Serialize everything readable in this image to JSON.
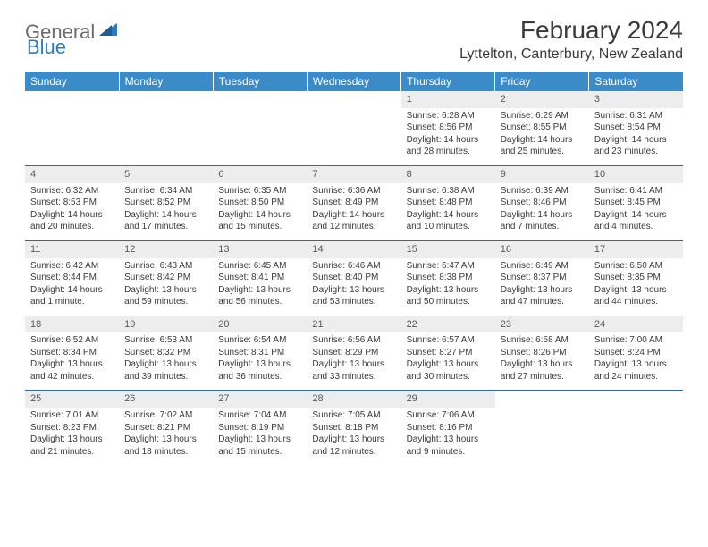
{
  "logo": {
    "text_gray": "General",
    "text_blue": "Blue"
  },
  "title": "February 2024",
  "location": "Lyttelton, Canterbury, New Zealand",
  "colors": {
    "header_bg": "#3b8bc8",
    "header_text": "#ffffff",
    "daynum_bg": "#ededed",
    "row_divider": "#2e6ca5",
    "body_text": "#3a3a3a",
    "logo_gray": "#6b6b6b",
    "logo_blue": "#2e7cbf"
  },
  "weekdays": [
    "Sunday",
    "Monday",
    "Tuesday",
    "Wednesday",
    "Thursday",
    "Friday",
    "Saturday"
  ],
  "weeks": [
    [
      {
        "num": "",
        "sunrise": "",
        "sunset": "",
        "daylight": ""
      },
      {
        "num": "",
        "sunrise": "",
        "sunset": "",
        "daylight": ""
      },
      {
        "num": "",
        "sunrise": "",
        "sunset": "",
        "daylight": ""
      },
      {
        "num": "",
        "sunrise": "",
        "sunset": "",
        "daylight": ""
      },
      {
        "num": "1",
        "sunrise": "Sunrise: 6:28 AM",
        "sunset": "Sunset: 8:56 PM",
        "daylight": "Daylight: 14 hours and 28 minutes."
      },
      {
        "num": "2",
        "sunrise": "Sunrise: 6:29 AM",
        "sunset": "Sunset: 8:55 PM",
        "daylight": "Daylight: 14 hours and 25 minutes."
      },
      {
        "num": "3",
        "sunrise": "Sunrise: 6:31 AM",
        "sunset": "Sunset: 8:54 PM",
        "daylight": "Daylight: 14 hours and 23 minutes."
      }
    ],
    [
      {
        "num": "4",
        "sunrise": "Sunrise: 6:32 AM",
        "sunset": "Sunset: 8:53 PM",
        "daylight": "Daylight: 14 hours and 20 minutes."
      },
      {
        "num": "5",
        "sunrise": "Sunrise: 6:34 AM",
        "sunset": "Sunset: 8:52 PM",
        "daylight": "Daylight: 14 hours and 17 minutes."
      },
      {
        "num": "6",
        "sunrise": "Sunrise: 6:35 AM",
        "sunset": "Sunset: 8:50 PM",
        "daylight": "Daylight: 14 hours and 15 minutes."
      },
      {
        "num": "7",
        "sunrise": "Sunrise: 6:36 AM",
        "sunset": "Sunset: 8:49 PM",
        "daylight": "Daylight: 14 hours and 12 minutes."
      },
      {
        "num": "8",
        "sunrise": "Sunrise: 6:38 AM",
        "sunset": "Sunset: 8:48 PM",
        "daylight": "Daylight: 14 hours and 10 minutes."
      },
      {
        "num": "9",
        "sunrise": "Sunrise: 6:39 AM",
        "sunset": "Sunset: 8:46 PM",
        "daylight": "Daylight: 14 hours and 7 minutes."
      },
      {
        "num": "10",
        "sunrise": "Sunrise: 6:41 AM",
        "sunset": "Sunset: 8:45 PM",
        "daylight": "Daylight: 14 hours and 4 minutes."
      }
    ],
    [
      {
        "num": "11",
        "sunrise": "Sunrise: 6:42 AM",
        "sunset": "Sunset: 8:44 PM",
        "daylight": "Daylight: 14 hours and 1 minute."
      },
      {
        "num": "12",
        "sunrise": "Sunrise: 6:43 AM",
        "sunset": "Sunset: 8:42 PM",
        "daylight": "Daylight: 13 hours and 59 minutes."
      },
      {
        "num": "13",
        "sunrise": "Sunrise: 6:45 AM",
        "sunset": "Sunset: 8:41 PM",
        "daylight": "Daylight: 13 hours and 56 minutes."
      },
      {
        "num": "14",
        "sunrise": "Sunrise: 6:46 AM",
        "sunset": "Sunset: 8:40 PM",
        "daylight": "Daylight: 13 hours and 53 minutes."
      },
      {
        "num": "15",
        "sunrise": "Sunrise: 6:47 AM",
        "sunset": "Sunset: 8:38 PM",
        "daylight": "Daylight: 13 hours and 50 minutes."
      },
      {
        "num": "16",
        "sunrise": "Sunrise: 6:49 AM",
        "sunset": "Sunset: 8:37 PM",
        "daylight": "Daylight: 13 hours and 47 minutes."
      },
      {
        "num": "17",
        "sunrise": "Sunrise: 6:50 AM",
        "sunset": "Sunset: 8:35 PM",
        "daylight": "Daylight: 13 hours and 44 minutes."
      }
    ],
    [
      {
        "num": "18",
        "sunrise": "Sunrise: 6:52 AM",
        "sunset": "Sunset: 8:34 PM",
        "daylight": "Daylight: 13 hours and 42 minutes."
      },
      {
        "num": "19",
        "sunrise": "Sunrise: 6:53 AM",
        "sunset": "Sunset: 8:32 PM",
        "daylight": "Daylight: 13 hours and 39 minutes."
      },
      {
        "num": "20",
        "sunrise": "Sunrise: 6:54 AM",
        "sunset": "Sunset: 8:31 PM",
        "daylight": "Daylight: 13 hours and 36 minutes."
      },
      {
        "num": "21",
        "sunrise": "Sunrise: 6:56 AM",
        "sunset": "Sunset: 8:29 PM",
        "daylight": "Daylight: 13 hours and 33 minutes."
      },
      {
        "num": "22",
        "sunrise": "Sunrise: 6:57 AM",
        "sunset": "Sunset: 8:27 PM",
        "daylight": "Daylight: 13 hours and 30 minutes."
      },
      {
        "num": "23",
        "sunrise": "Sunrise: 6:58 AM",
        "sunset": "Sunset: 8:26 PM",
        "daylight": "Daylight: 13 hours and 27 minutes."
      },
      {
        "num": "24",
        "sunrise": "Sunrise: 7:00 AM",
        "sunset": "Sunset: 8:24 PM",
        "daylight": "Daylight: 13 hours and 24 minutes."
      }
    ],
    [
      {
        "num": "25",
        "sunrise": "Sunrise: 7:01 AM",
        "sunset": "Sunset: 8:23 PM",
        "daylight": "Daylight: 13 hours and 21 minutes."
      },
      {
        "num": "26",
        "sunrise": "Sunrise: 7:02 AM",
        "sunset": "Sunset: 8:21 PM",
        "daylight": "Daylight: 13 hours and 18 minutes."
      },
      {
        "num": "27",
        "sunrise": "Sunrise: 7:04 AM",
        "sunset": "Sunset: 8:19 PM",
        "daylight": "Daylight: 13 hours and 15 minutes."
      },
      {
        "num": "28",
        "sunrise": "Sunrise: 7:05 AM",
        "sunset": "Sunset: 8:18 PM",
        "daylight": "Daylight: 13 hours and 12 minutes."
      },
      {
        "num": "29",
        "sunrise": "Sunrise: 7:06 AM",
        "sunset": "Sunset: 8:16 PM",
        "daylight": "Daylight: 13 hours and 9 minutes."
      },
      {
        "num": "",
        "sunrise": "",
        "sunset": "",
        "daylight": ""
      },
      {
        "num": "",
        "sunrise": "",
        "sunset": "",
        "daylight": ""
      }
    ]
  ]
}
